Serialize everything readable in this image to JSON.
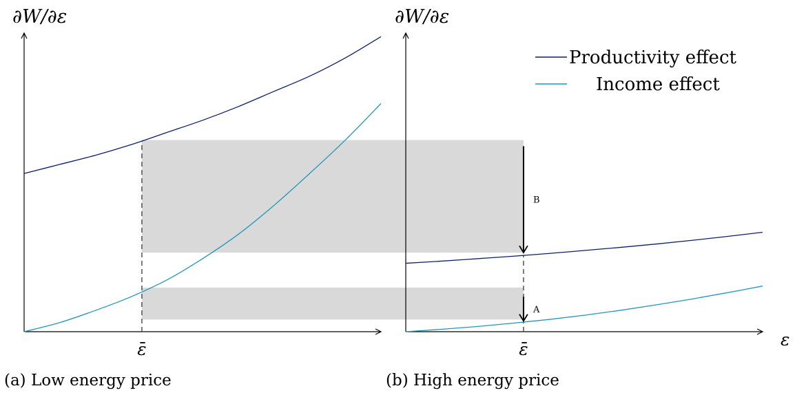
{
  "chart_data": [
    {
      "type": "line",
      "caption": "(a) Low energy price",
      "ylabel": "∂W/∂ε",
      "xlabel": "",
      "x_tick_label": "ε̄",
      "series": [
        {
          "name": "Productivity effect",
          "color": "#0b1f6b",
          "x": [
            0,
            0.1,
            0.2,
            0.3,
            0.4,
            0.5,
            0.6,
            0.7,
            0.8,
            0.9,
            1.0
          ],
          "values": [
            0.52,
            0.55,
            0.58,
            0.615,
            0.655,
            0.695,
            0.74,
            0.79,
            0.84,
            0.9,
            0.97
          ]
        },
        {
          "name": "Income effect",
          "color": "#1f97bb",
          "x": [
            0,
            0.1,
            0.2,
            0.3,
            0.4,
            0.5,
            0.6,
            0.7,
            0.8,
            0.9,
            1.0
          ],
          "values": [
            0.0,
            0.03,
            0.07,
            0.115,
            0.17,
            0.24,
            0.32,
            0.415,
            0.52,
            0.63,
            0.75
          ]
        }
      ],
      "xbar": 0.33,
      "shaded_bands": [
        {
          "y": [
            0.26,
            0.63
          ]
        },
        {
          "y": [
            0.04,
            0.145
          ]
        }
      ]
    },
    {
      "type": "line",
      "caption": "(b) High energy price",
      "ylabel": "∂W/∂ε",
      "xlabel": "ε",
      "x_tick_label": "ε̄",
      "legend": [
        "Productivity effect",
        "Income effect"
      ],
      "series": [
        {
          "name": "Productivity effect",
          "color": "#0b1f6b",
          "x": [
            0,
            0.1,
            0.2,
            0.3,
            0.4,
            0.5,
            0.6,
            0.7,
            0.8,
            0.9,
            1.0
          ],
          "values": [
            0.225,
            0.232,
            0.24,
            0.248,
            0.257,
            0.267,
            0.277,
            0.288,
            0.3,
            0.313,
            0.327
          ]
        },
        {
          "name": "Income effect",
          "color": "#1f97bb",
          "x": [
            0,
            0.1,
            0.2,
            0.3,
            0.4,
            0.5,
            0.6,
            0.7,
            0.8,
            0.9,
            1.0
          ],
          "values": [
            0.0,
            0.008,
            0.017,
            0.028,
            0.04,
            0.054,
            0.07,
            0.088,
            0.107,
            0.128,
            0.15
          ]
        }
      ],
      "xbar": 0.33,
      "annotations": [
        {
          "label": "B",
          "from_y": 0.61,
          "to_y": 0.26
        },
        {
          "label": "A",
          "from_y": 0.115,
          "to_y": 0.035
        }
      ]
    }
  ]
}
